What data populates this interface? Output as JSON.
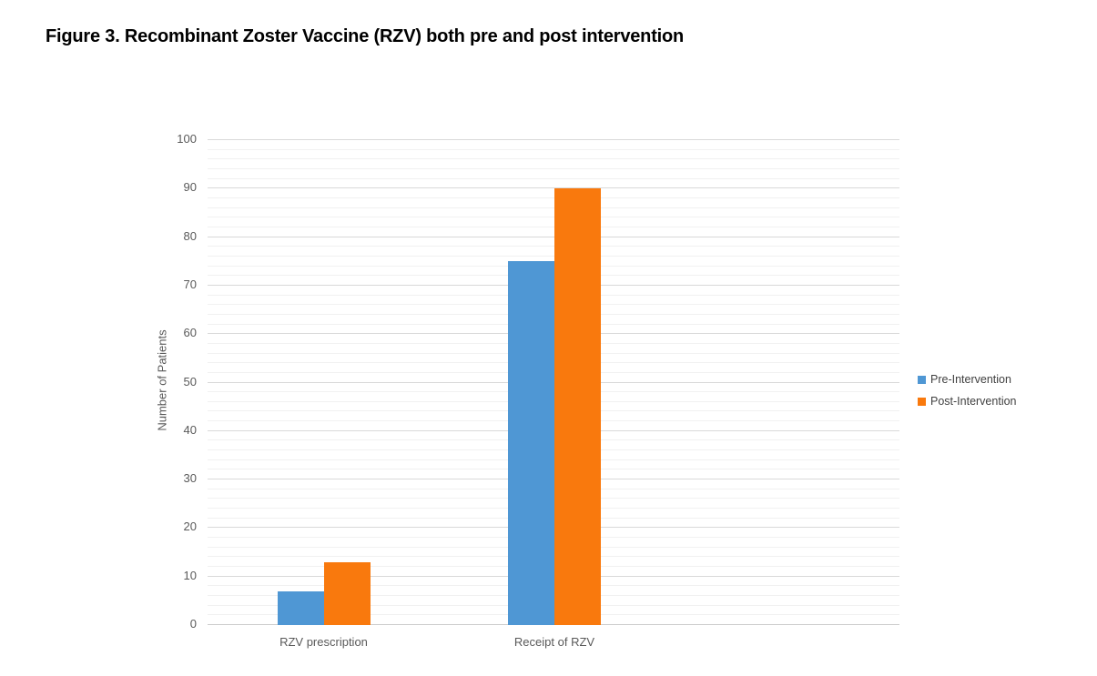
{
  "title": "Figure 3. Recombinant Zoster Vaccine (RZV) both pre and post intervention",
  "chart_data": {
    "type": "bar",
    "title": "Figure 3. Recombinant Zoster Vaccine (RZV) both pre and post intervention",
    "categories": [
      "RZV prescription",
      "Receipt of RZV"
    ],
    "series": [
      {
        "name": "Pre-Intervention",
        "color": "#4F97D4",
        "values": [
          7,
          75
        ]
      },
      {
        "name": "Post-Intervention",
        "color": "#F9790D",
        "values": [
          13,
          90
        ]
      }
    ],
    "xlabel": "",
    "ylabel": "Number of Patients",
    "ylim": [
      0,
      100
    ],
    "ytick_step": 10,
    "minor_gridline_step": 2,
    "ytick_labels": [
      "0",
      "10",
      "20",
      "30",
      "40",
      "50",
      "60",
      "70",
      "80",
      "90",
      "100"
    ],
    "grid": "on",
    "legend_position": "right",
    "colors": {
      "major_gridline": "#d9d9d9",
      "minor_gridline": "#f1f1f1",
      "axis_text": "#595959",
      "title_text": "#000000"
    }
  }
}
